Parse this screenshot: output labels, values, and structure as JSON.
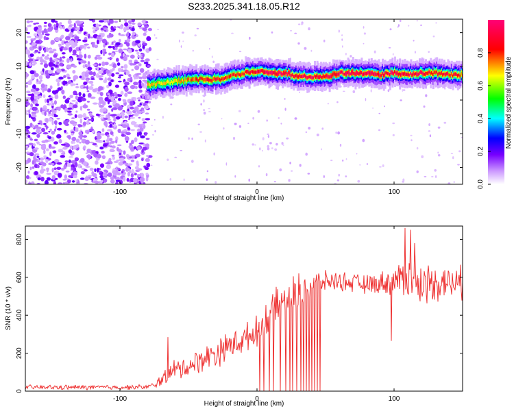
{
  "chart_data": [
    {
      "type": "heatmap",
      "title": "S233.2025.341.18.05.R12",
      "xlabel": "Height of straight line (km)",
      "ylabel": "Frequency (Hz)",
      "xlim": [
        -169,
        150
      ],
      "ylim": [
        -25,
        24
      ],
      "xticks": [
        -100,
        0,
        100
      ],
      "yticks": [
        20,
        10,
        0,
        -10,
        -20
      ],
      "colorbar": {
        "label": "Normalized spectral amplitude",
        "range": [
          0.0,
          1.0
        ],
        "ticks": [
          "0.0",
          "0.2",
          "0.4",
          "0.6",
          "0.8"
        ],
        "colors": [
          "#ffffff",
          "#7700ff",
          "#0000ff",
          "#00ffff",
          "#00ff00",
          "#ffff00",
          "#ff0000",
          "#ff0088"
        ]
      },
      "noise_region": {
        "x_from": -169,
        "x_to": -78,
        "amplitude": 0.15
      },
      "signal_track": {
        "x": [
          -80,
          -70,
          -60,
          -50,
          -40,
          -30,
          -20,
          -10,
          0,
          10,
          20,
          30,
          40,
          50,
          60,
          70,
          80,
          90,
          100,
          110,
          120,
          130,
          140,
          150
        ],
        "frequency": [
          4.5,
          5.0,
          5.5,
          6.0,
          6.2,
          6.0,
          7.0,
          8.0,
          8.5,
          8.0,
          8.0,
          7.0,
          7.0,
          7.0,
          8.0,
          8.0,
          8.0,
          7.5,
          8.0,
          7.5,
          8.0,
          8.0,
          7.5,
          7.5
        ],
        "peak_amplitude": [
          0.7,
          0.65,
          0.7,
          0.75,
          0.8,
          0.85,
          0.8,
          0.85,
          0.9,
          0.95,
          0.95,
          0.9,
          0.9,
          0.9,
          0.95,
          0.95,
          0.95,
          0.95,
          0.9,
          0.9,
          0.9,
          0.85,
          0.85,
          0.8
        ]
      }
    },
    {
      "type": "line",
      "xlabel": "Height of straight line (km)",
      "ylabel": "SNR (10 * v/v)",
      "xlim": [
        -169,
        150
      ],
      "ylim": [
        0,
        870
      ],
      "xticks": [
        -100,
        0,
        100
      ],
      "yticks": [
        0,
        200,
        400,
        600,
        800
      ],
      "color": "#ee3333",
      "envelope": {
        "x": [
          -169,
          -140,
          -100,
          -80,
          -75,
          -70,
          -60,
          -50,
          -40,
          -30,
          -20,
          -10,
          0,
          10,
          20,
          30,
          40,
          50,
          60,
          70,
          80,
          90,
          100,
          110,
          120,
          130,
          140,
          150
        ],
        "mean": [
          20,
          20,
          20,
          22,
          30,
          60,
          110,
          130,
          170,
          200,
          240,
          270,
          320,
          420,
          470,
          520,
          560,
          580,
          580,
          570,
          560,
          570,
          580,
          600,
          560,
          580,
          570,
          570
        ],
        "spread": [
          15,
          15,
          15,
          15,
          20,
          40,
          70,
          70,
          80,
          90,
          90,
          90,
          90,
          110,
          120,
          120,
          90,
          60,
          60,
          60,
          60,
          70,
          90,
          140,
          130,
          120,
          110,
          100
        ]
      },
      "dropouts_x": [
        2,
        5,
        9,
        12,
        17,
        21,
        24,
        26,
        29,
        32,
        34,
        36,
        38,
        40,
        42,
        44,
        46
      ],
      "spikes": [
        {
          "x": -65,
          "y": 285
        },
        {
          "x": 98,
          "y": 265
        },
        {
          "x": 108,
          "y": 860
        },
        {
          "x": 112,
          "y": 850
        },
        {
          "x": 115,
          "y": 780
        }
      ]
    }
  ]
}
